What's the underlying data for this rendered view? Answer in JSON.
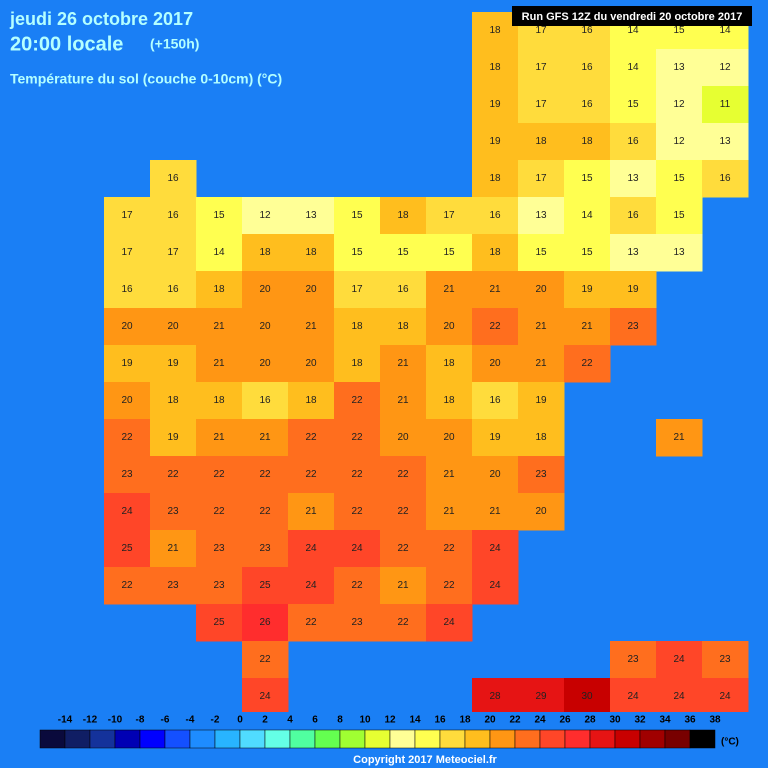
{
  "header": {
    "date": "jeudi 26 octobre 2017",
    "time": "20:00 locale",
    "lead": "(+150h)"
  },
  "subtitle": "Température du sol (couche 0-10cm) (°C)",
  "run": "Run GFS 12Z du vendredi 20 octobre 2017",
  "grid": {
    "rows": [
      [
        null,
        null,
        null,
        null,
        null,
        null,
        null,
        null,
        null,
        null,
        18,
        17,
        16,
        14,
        15,
        14
      ],
      [
        null,
        null,
        null,
        null,
        null,
        null,
        null,
        null,
        null,
        null,
        18,
        17,
        16,
        14,
        13,
        12
      ],
      [
        null,
        null,
        null,
        null,
        null,
        null,
        null,
        null,
        null,
        null,
        19,
        17,
        16,
        15,
        12,
        11
      ],
      [
        null,
        null,
        null,
        null,
        null,
        null,
        null,
        null,
        null,
        null,
        19,
        18,
        18,
        16,
        12,
        13
      ],
      [
        null,
        null,
        null,
        16,
        null,
        null,
        null,
        null,
        null,
        null,
        18,
        17,
        15,
        13,
        15,
        16
      ],
      [
        null,
        null,
        17,
        16,
        15,
        12,
        13,
        15,
        18,
        17,
        16,
        13,
        14,
        16,
        15,
        null
      ],
      [
        null,
        null,
        17,
        17,
        14,
        18,
        18,
        15,
        15,
        15,
        18,
        15,
        15,
        13,
        13,
        null
      ],
      [
        null,
        null,
        16,
        16,
        18,
        20,
        20,
        17,
        16,
        21,
        21,
        20,
        19,
        19,
        null,
        null
      ],
      [
        null,
        null,
        20,
        20,
        21,
        20,
        21,
        18,
        18,
        20,
        22,
        21,
        21,
        23,
        null,
        null
      ],
      [
        null,
        null,
        19,
        19,
        21,
        20,
        20,
        18,
        21,
        18,
        20,
        21,
        22,
        null,
        null,
        null
      ],
      [
        null,
        null,
        20,
        18,
        18,
        16,
        18,
        22,
        21,
        18,
        16,
        19,
        null,
        null,
        null,
        null
      ],
      [
        null,
        null,
        22,
        19,
        21,
        21,
        22,
        22,
        20,
        20,
        19,
        18,
        null,
        null,
        21,
        null
      ],
      [
        null,
        null,
        23,
        22,
        22,
        22,
        22,
        22,
        22,
        21,
        20,
        23,
        null,
        null,
        null,
        null
      ],
      [
        null,
        null,
        24,
        23,
        22,
        22,
        21,
        22,
        22,
        21,
        21,
        20,
        null,
        null,
        null,
        null
      ],
      [
        null,
        null,
        25,
        21,
        23,
        23,
        24,
        24,
        22,
        22,
        24,
        null,
        null,
        null,
        null,
        null
      ],
      [
        null,
        null,
        22,
        23,
        23,
        25,
        24,
        22,
        21,
        22,
        24,
        null,
        null,
        null,
        null,
        null
      ],
      [
        null,
        null,
        null,
        null,
        25,
        26,
        22,
        23,
        22,
        24,
        null,
        null,
        null,
        null,
        null,
        null
      ],
      [
        null,
        null,
        null,
        null,
        null,
        22,
        null,
        null,
        null,
        null,
        null,
        null,
        null,
        23,
        24,
        23
      ],
      [
        null,
        null,
        null,
        null,
        null,
        24,
        null,
        null,
        null,
        null,
        28,
        29,
        30,
        24,
        24,
        24
      ]
    ]
  },
  "legend": {
    "values": [
      -14,
      -12,
      -10,
      -8,
      -6,
      -4,
      -2,
      0,
      2,
      4,
      6,
      8,
      10,
      12,
      14,
      16,
      18,
      20,
      22,
      24,
      26,
      28,
      30,
      32,
      34,
      36,
      38
    ],
    "colors": [
      "#0a0a3c",
      "#101e64",
      "#14329b",
      "#0000b4",
      "#0000ff",
      "#1450ff",
      "#1e8cff",
      "#28b4ff",
      "#50dcff",
      "#64ffe6",
      "#50ffa0",
      "#64ff50",
      "#a0ff32",
      "#e6ff32",
      "#ffff96",
      "#ffff50",
      "#ffdc3c",
      "#ffbe1e",
      "#ff9614",
      "#ff6e1e",
      "#ff4628",
      "#ff2d2d",
      "#e61414",
      "#c80000",
      "#a00000",
      "#780000",
      "#000000"
    ],
    "unit": "(°C)"
  },
  "copyright": "Copyright 2017 Meteociel.fr"
}
